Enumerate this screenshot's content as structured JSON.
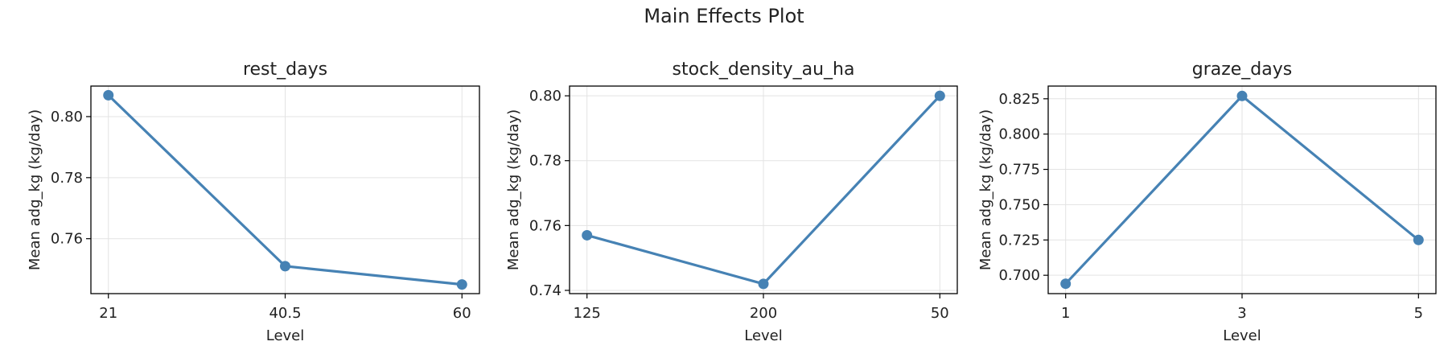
{
  "title": "Main Effects Plot",
  "colors": {
    "line": "#4682b4",
    "grid": "#e3e3e3",
    "axis": "#000000",
    "background": "#ffffff"
  },
  "chart_data": [
    {
      "type": "line",
      "title": "rest_days",
      "xlabel": "Level",
      "ylabel": "Mean adg_kg (kg/day)",
      "categories": [
        "21",
        "40.5",
        "60"
      ],
      "values": [
        0.807,
        0.751,
        0.745
      ],
      "ylim": [
        0.742,
        0.81
      ],
      "yticks": [
        0.76,
        0.78,
        0.8
      ],
      "ytick_labels": [
        "0.76",
        "0.78",
        "0.80"
      ],
      "grid": true
    },
    {
      "type": "line",
      "title": "stock_density_au_ha",
      "xlabel": "Level",
      "ylabel": "Mean adg_kg (kg/day)",
      "categories": [
        "125",
        "200",
        "50"
      ],
      "values": [
        0.757,
        0.742,
        0.8
      ],
      "ylim": [
        0.739,
        0.803
      ],
      "yticks": [
        0.74,
        0.76,
        0.78,
        0.8
      ],
      "ytick_labels": [
        "0.74",
        "0.76",
        "0.78",
        "0.80"
      ],
      "grid": true
    },
    {
      "type": "line",
      "title": "graze_days",
      "xlabel": "Level",
      "ylabel": "Mean adg_kg (kg/day)",
      "categories": [
        "1",
        "3",
        "5"
      ],
      "values": [
        0.694,
        0.827,
        0.725
      ],
      "ylim": [
        0.687,
        0.834
      ],
      "yticks": [
        0.7,
        0.725,
        0.75,
        0.775,
        0.8,
        0.825
      ],
      "ytick_labels": [
        "0.700",
        "0.725",
        "0.750",
        "0.775",
        "0.800",
        "0.825"
      ],
      "grid": true
    }
  ]
}
